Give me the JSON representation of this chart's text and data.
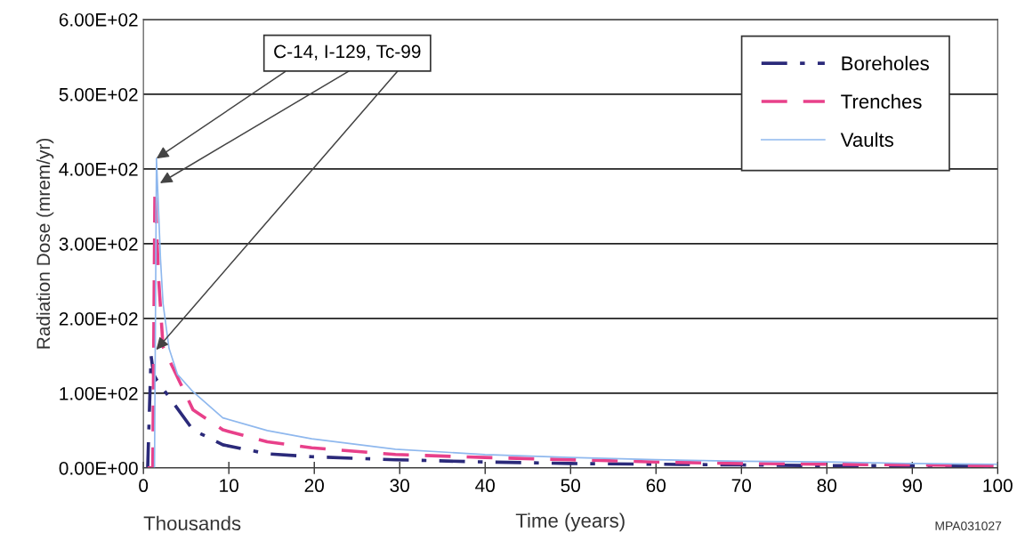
{
  "chart_data": {
    "type": "line",
    "xlabel": "Time (years)",
    "ylabel": "Radiation Dose (mrem/yr)",
    "xlim": [
      0,
      100
    ],
    "xticks": [
      0,
      10,
      20,
      30,
      40,
      50,
      60,
      70,
      80,
      90,
      100
    ],
    "ylim": [
      0,
      600
    ],
    "yticks": [
      {
        "value": 0,
        "label": "0.00E+00"
      },
      {
        "value": 100,
        "label": "1.00E+02"
      },
      {
        "value": 200,
        "label": "2.00E+02"
      },
      {
        "value": 300,
        "label": "3.00E+02"
      },
      {
        "value": 400,
        "label": "4.00E+02"
      },
      {
        "value": 500,
        "label": "5.00E+02"
      },
      {
        "value": 600,
        "label": "6.00E+02"
      }
    ],
    "grid": "y",
    "legend": "top right",
    "marker": "none",
    "series": [
      {
        "name": "Boreholes",
        "color": "#2b2a7a",
        "line_style": "dashdot",
        "x": [
          0.5,
          0.9,
          1.2,
          1.6,
          2.3,
          5.8,
          9.3,
          14.5,
          19.7,
          29.5,
          40,
          50,
          60,
          70,
          80,
          90,
          100
        ],
        "values": [
          0,
          150,
          125,
          117,
          106,
          51,
          31,
          19,
          15,
          11,
          8,
          6,
          5,
          4,
          3,
          3,
          2
        ]
      },
      {
        "name": "Trenches",
        "color": "#e8408a",
        "line_style": "dashed",
        "x": [
          0.5,
          1.1,
          1.35,
          1.8,
          2.3,
          5.8,
          9.3,
          14.5,
          19.7,
          29.5,
          40,
          50,
          60,
          70,
          80,
          90,
          100
        ],
        "values": [
          0,
          0,
          373,
          250,
          162,
          78,
          51,
          35,
          27,
          18,
          14,
          11,
          8,
          6,
          5,
          4,
          3
        ]
      },
      {
        "name": "Vaults",
        "color": "#8fb8ee",
        "line_style": "solid",
        "x": [
          1.3,
          1.53,
          2,
          2.3,
          3,
          4,
          5.8,
          9.3,
          14.5,
          19.7,
          29.5,
          40,
          50,
          60,
          70,
          80,
          90,
          100
        ],
        "values": [
          0,
          414,
          280,
          220,
          160,
          125,
          102,
          67,
          50,
          39,
          25,
          18,
          14,
          11,
          9,
          8,
          6,
          5
        ]
      }
    ],
    "annotations": [
      {
        "text": "C-14, I-129, Tc-99",
        "x": 1.53,
        "y": 414
      },
      "Thousands",
      "MPA031027"
    ]
  }
}
